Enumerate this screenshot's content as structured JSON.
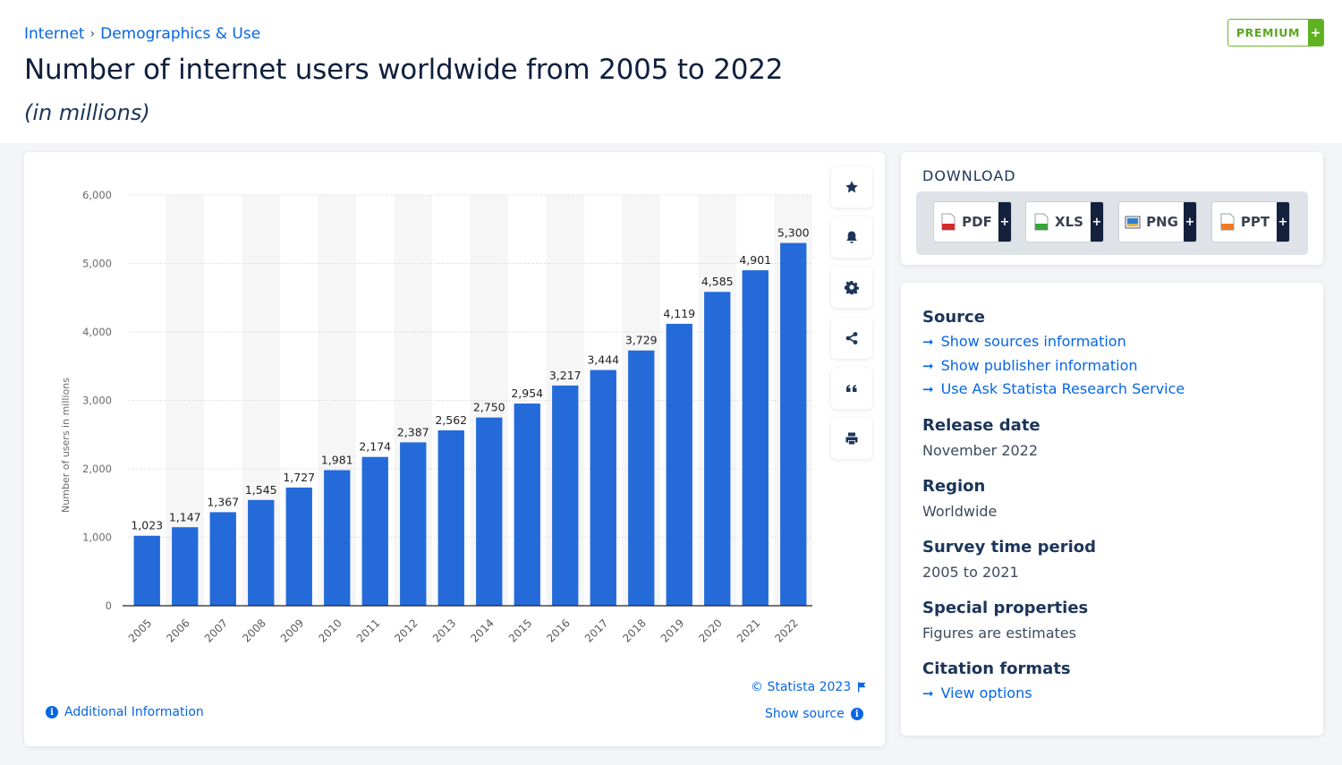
{
  "breadcrumb": {
    "items": [
      "Internet",
      "Demographics & Use"
    ],
    "separator": "›"
  },
  "header": {
    "title": "Number of internet users worldwide from 2005 to 2022",
    "subtitle": "(in millions)",
    "premium_label": "PREMIUM",
    "premium_plus": "+"
  },
  "tools": [
    {
      "name": "bookmark",
      "icon": "star-icon"
    },
    {
      "name": "notification",
      "icon": "bell-icon"
    },
    {
      "name": "settings",
      "icon": "gear-icon"
    },
    {
      "name": "share",
      "icon": "share-icon"
    },
    {
      "name": "cite",
      "icon": "quote-icon"
    },
    {
      "name": "print",
      "icon": "printer-icon"
    }
  ],
  "chart_data": {
    "type": "bar",
    "title": "Number of internet users worldwide from 2005 to 2022",
    "subtitle": "(in millions)",
    "xlabel": "",
    "ylabel": "Number of users in millions",
    "categories": [
      "2005",
      "2006",
      "2007",
      "2008",
      "2009",
      "2010",
      "2011",
      "2012",
      "2013",
      "2014",
      "2015",
      "2016",
      "2017",
      "2018",
      "2019",
      "2020",
      "2021",
      "2022"
    ],
    "values": [
      1023,
      1147,
      1367,
      1545,
      1727,
      1981,
      2174,
      2387,
      2562,
      2750,
      2954,
      3217,
      3444,
      3729,
      4119,
      4585,
      4901,
      5300
    ],
    "value_labels": [
      "1,023",
      "1,147",
      "1,367",
      "1,545",
      "1,727",
      "1,981",
      "2,174",
      "2,387",
      "2,562",
      "2,750",
      "2,954",
      "3,217",
      "3,444",
      "3,729",
      "4,119",
      "4,585",
      "4,901",
      "5,300"
    ],
    "ylim": [
      0,
      6000
    ],
    "yticks": [
      0,
      1000,
      2000,
      3000,
      4000,
      5000,
      6000
    ],
    "ytick_labels": [
      "0",
      "1,000",
      "2,000",
      "3,000",
      "4,000",
      "5,000",
      "6,000"
    ],
    "grid": true,
    "legend": "none",
    "bar_color": "#246ad9"
  },
  "chart_footer": {
    "copyright": "© Statista 2023",
    "additional_info": "Additional Information",
    "show_source": "Show source"
  },
  "download": {
    "title": "DOWNLOAD",
    "formats": [
      {
        "label": "PDF",
        "color": "#d42b2b"
      },
      {
        "label": "XLS",
        "color": "#3aa53a"
      },
      {
        "label": "PNG",
        "color": "#2f7fd1"
      },
      {
        "label": "PPT",
        "color": "#ef7a22"
      }
    ],
    "plus": "+"
  },
  "meta": {
    "source_heading": "Source",
    "source_links": [
      "Show sources information",
      "Show publisher information",
      "Use Ask Statista Research Service"
    ],
    "release_heading": "Release date",
    "release_value": "November 2022",
    "region_heading": "Region",
    "region_value": "Worldwide",
    "survey_heading": "Survey time period",
    "survey_value": "2005 to 2021",
    "special_heading": "Special properties",
    "special_value": "Figures are estimates",
    "citation_heading": "Citation formats",
    "citation_link": "View options",
    "arrow": "➞"
  }
}
